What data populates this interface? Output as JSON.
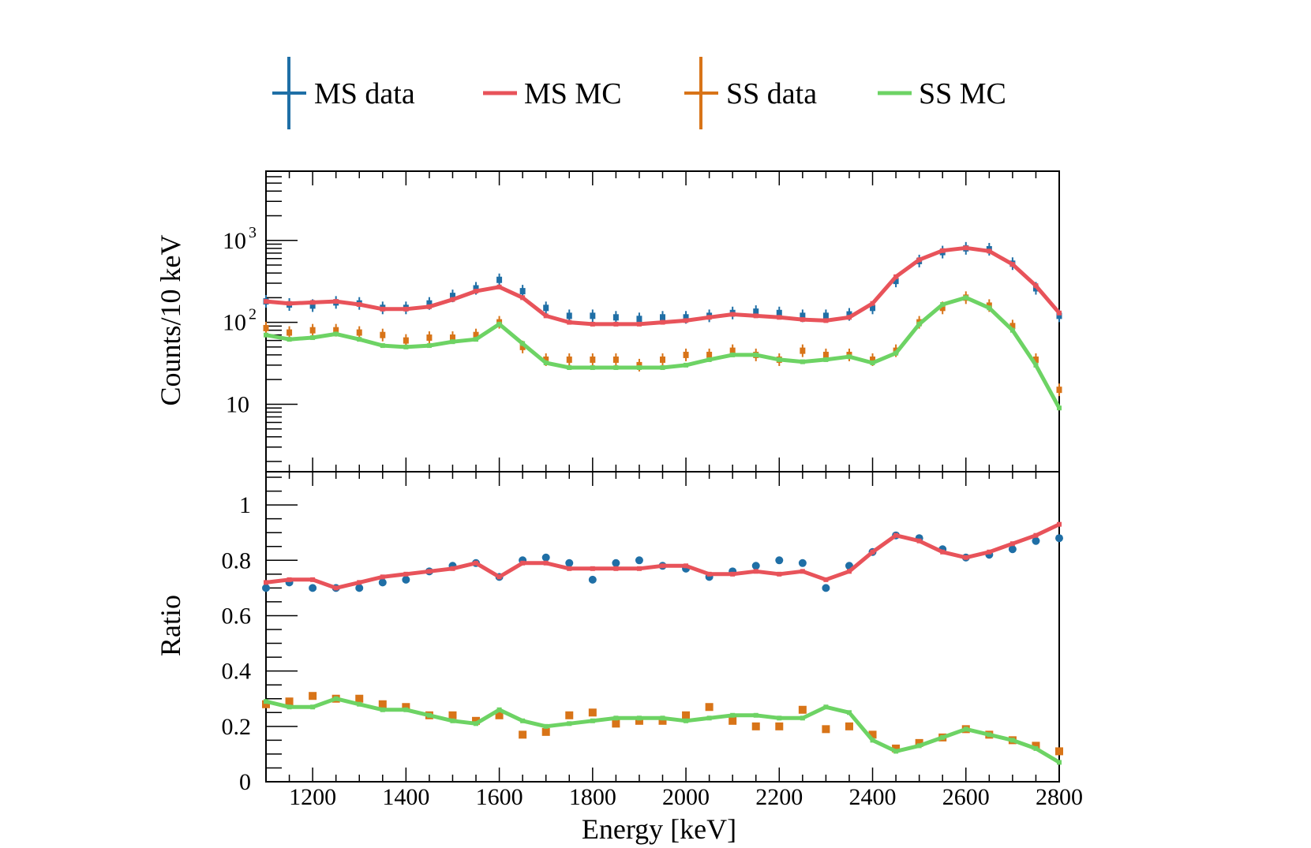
{
  "chart_data": [
    {
      "type": "scatter",
      "panel": "top",
      "yscale": "log",
      "xlabel": "Energy [keV]",
      "ylabel": "Counts/10 keV",
      "xlim": [
        1100,
        2800
      ],
      "ylim": [
        1.5,
        7000
      ],
      "xticks": [
        1200,
        1400,
        1600,
        1800,
        2000,
        2200,
        2400,
        2600,
        2800
      ],
      "yticks": [
        {
          "value": 10,
          "label": "10",
          "exp": ""
        },
        {
          "value": 100,
          "label": "10",
          "exp": "2"
        },
        {
          "value": 1000,
          "label": "10",
          "exp": "3"
        }
      ],
      "legend": [
        "MS data",
        "MS MC",
        "SS data",
        "SS MC"
      ],
      "legend_position": "top",
      "series": [
        {
          "name": "MS data",
          "kind": "data",
          "color": "#1f6fa6",
          "x": [
            1100,
            1150,
            1200,
            1250,
            1300,
            1350,
            1400,
            1450,
            1500,
            1550,
            1600,
            1650,
            1700,
            1750,
            1800,
            1850,
            1900,
            1950,
            2000,
            2050,
            2100,
            2150,
            2200,
            2250,
            2300,
            2350,
            2400,
            2450,
            2500,
            2550,
            2600,
            2650,
            2700,
            2750,
            2800
          ],
          "y": [
            180,
            165,
            160,
            175,
            170,
            150,
            150,
            170,
            210,
            260,
            330,
            240,
            150,
            120,
            120,
            115,
            110,
            115,
            115,
            120,
            130,
            135,
            130,
            120,
            120,
            125,
            150,
            320,
            560,
            720,
            800,
            780,
            520,
            260,
            120
          ]
        },
        {
          "name": "MS MC",
          "kind": "mc",
          "color": "#e8535a",
          "x": [
            1100,
            1150,
            1200,
            1250,
            1300,
            1350,
            1400,
            1450,
            1500,
            1550,
            1600,
            1650,
            1700,
            1750,
            1800,
            1850,
            1900,
            1950,
            2000,
            2050,
            2100,
            2150,
            2200,
            2250,
            2300,
            2350,
            2400,
            2450,
            2500,
            2550,
            2600,
            2650,
            2700,
            2750,
            2800
          ],
          "y": [
            180,
            170,
            175,
            180,
            165,
            145,
            145,
            155,
            190,
            240,
            270,
            200,
            120,
            100,
            95,
            95,
            95,
            100,
            105,
            115,
            125,
            120,
            115,
            108,
            105,
            115,
            170,
            360,
            580,
            750,
            810,
            740,
            510,
            280,
            130
          ]
        },
        {
          "name": "SS data",
          "kind": "data",
          "color": "#d87418",
          "x": [
            1100,
            1150,
            1200,
            1250,
            1300,
            1350,
            1400,
            1450,
            1500,
            1550,
            1600,
            1650,
            1700,
            1750,
            1800,
            1850,
            1900,
            1950,
            2000,
            2050,
            2100,
            2150,
            2200,
            2250,
            2300,
            2350,
            2400,
            2450,
            2500,
            2550,
            2600,
            2650,
            2700,
            2750,
            2800
          ],
          "y": [
            85,
            75,
            80,
            80,
            75,
            70,
            60,
            65,
            65,
            70,
            100,
            50,
            35,
            35,
            35,
            35,
            30,
            35,
            40,
            40,
            45,
            40,
            35,
            45,
            40,
            40,
            35,
            45,
            100,
            150,
            200,
            160,
            90,
            35,
            15
          ]
        },
        {
          "name": "SS MC",
          "kind": "mc",
          "color": "#6dd364",
          "x": [
            1100,
            1150,
            1200,
            1250,
            1300,
            1350,
            1400,
            1450,
            1500,
            1550,
            1600,
            1650,
            1700,
            1750,
            1800,
            1850,
            1900,
            1950,
            2000,
            2050,
            2100,
            2150,
            2200,
            2250,
            2300,
            2350,
            2400,
            2450,
            2500,
            2550,
            2600,
            2650,
            2700,
            2750,
            2800
          ],
          "y": [
            70,
            62,
            65,
            72,
            62,
            52,
            50,
            52,
            58,
            62,
            95,
            55,
            32,
            28,
            28,
            28,
            28,
            28,
            30,
            35,
            40,
            40,
            35,
            33,
            35,
            38,
            32,
            42,
            95,
            165,
            200,
            150,
            80,
            30,
            9
          ]
        }
      ]
    },
    {
      "type": "scatter",
      "panel": "bottom",
      "xlabel": "Energy [keV]",
      "ylabel": "Ratio",
      "xlim": [
        1100,
        2800
      ],
      "ylim": [
        0,
        1.12
      ],
      "xticks": [
        1200,
        1400,
        1600,
        1800,
        2000,
        2200,
        2400,
        2600,
        2800
      ],
      "yticks": [
        0,
        0.2,
        0.4,
        0.6,
        0.8,
        1
      ],
      "ytick_labels": [
        "0",
        "0.2",
        "0.4",
        "0.6",
        "0.8",
        "1"
      ],
      "series": [
        {
          "name": "MS data",
          "kind": "data",
          "color": "#1f6fa6",
          "x": [
            1100,
            1150,
            1200,
            1250,
            1300,
            1350,
            1400,
            1450,
            1500,
            1550,
            1600,
            1650,
            1700,
            1750,
            1800,
            1850,
            1900,
            1950,
            2000,
            2050,
            2100,
            2150,
            2200,
            2250,
            2300,
            2350,
            2400,
            2450,
            2500,
            2550,
            2600,
            2650,
            2700,
            2750,
            2800
          ],
          "y": [
            0.7,
            0.72,
            0.7,
            0.7,
            0.7,
            0.72,
            0.73,
            0.76,
            0.78,
            0.79,
            0.74,
            0.8,
            0.81,
            0.79,
            0.73,
            0.79,
            0.8,
            0.78,
            0.77,
            0.74,
            0.76,
            0.78,
            0.8,
            0.79,
            0.7,
            0.78,
            0.83,
            0.89,
            0.88,
            0.84,
            0.81,
            0.82,
            0.84,
            0.87,
            0.88
          ]
        },
        {
          "name": "MS MC",
          "kind": "mc",
          "color": "#e8535a",
          "x": [
            1100,
            1150,
            1200,
            1250,
            1300,
            1350,
            1400,
            1450,
            1500,
            1550,
            1600,
            1650,
            1700,
            1750,
            1800,
            1850,
            1900,
            1950,
            2000,
            2050,
            2100,
            2150,
            2200,
            2250,
            2300,
            2350,
            2400,
            2450,
            2500,
            2550,
            2600,
            2650,
            2700,
            2750,
            2800
          ],
          "y": [
            0.72,
            0.73,
            0.73,
            0.7,
            0.72,
            0.74,
            0.75,
            0.76,
            0.77,
            0.79,
            0.74,
            0.79,
            0.79,
            0.77,
            0.77,
            0.77,
            0.77,
            0.78,
            0.78,
            0.75,
            0.75,
            0.76,
            0.75,
            0.76,
            0.73,
            0.76,
            0.83,
            0.89,
            0.87,
            0.83,
            0.81,
            0.83,
            0.86,
            0.89,
            0.93
          ]
        },
        {
          "name": "SS data",
          "kind": "data",
          "color": "#d87418",
          "x": [
            1100,
            1150,
            1200,
            1250,
            1300,
            1350,
            1400,
            1450,
            1500,
            1550,
            1600,
            1650,
            1700,
            1750,
            1800,
            1850,
            1900,
            1950,
            2000,
            2050,
            2100,
            2150,
            2200,
            2250,
            2300,
            2350,
            2400,
            2450,
            2500,
            2550,
            2600,
            2650,
            2700,
            2750,
            2800
          ],
          "y": [
            0.28,
            0.29,
            0.31,
            0.3,
            0.3,
            0.28,
            0.27,
            0.24,
            0.24,
            0.22,
            0.24,
            0.17,
            0.18,
            0.24,
            0.25,
            0.21,
            0.22,
            0.22,
            0.24,
            0.27,
            0.22,
            0.2,
            0.2,
            0.26,
            0.19,
            0.2,
            0.17,
            0.12,
            0.14,
            0.16,
            0.19,
            0.17,
            0.15,
            0.13,
            0.11
          ]
        },
        {
          "name": "SS MC",
          "kind": "mc",
          "color": "#6dd364",
          "x": [
            1100,
            1150,
            1200,
            1250,
            1300,
            1350,
            1400,
            1450,
            1500,
            1550,
            1600,
            1650,
            1700,
            1750,
            1800,
            1850,
            1900,
            1950,
            2000,
            2050,
            2100,
            2150,
            2200,
            2250,
            2300,
            2350,
            2400,
            2450,
            2500,
            2550,
            2600,
            2650,
            2700,
            2750,
            2800
          ],
          "y": [
            0.29,
            0.27,
            0.27,
            0.3,
            0.28,
            0.26,
            0.26,
            0.24,
            0.22,
            0.21,
            0.26,
            0.22,
            0.2,
            0.21,
            0.22,
            0.23,
            0.23,
            0.23,
            0.22,
            0.23,
            0.24,
            0.24,
            0.23,
            0.23,
            0.27,
            0.25,
            0.15,
            0.11,
            0.13,
            0.16,
            0.19,
            0.17,
            0.15,
            0.12,
            0.07
          ]
        }
      ]
    }
  ]
}
